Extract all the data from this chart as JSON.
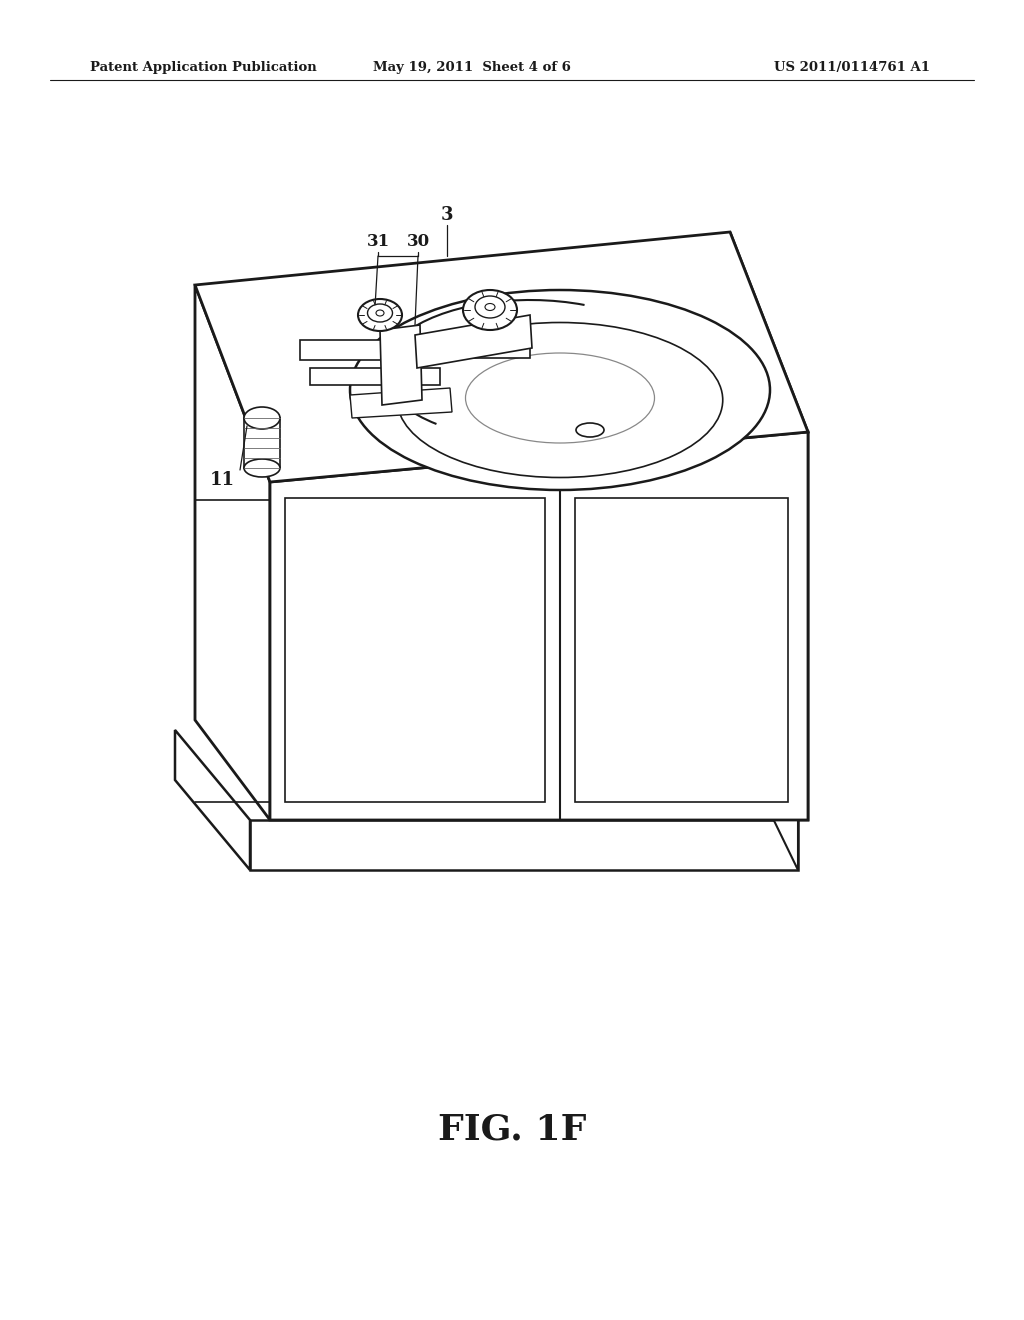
{
  "bg_color": "#ffffff",
  "line_color": "#1a1a1a",
  "header_left": "Patent Application Publication",
  "header_mid": "May 19, 2011  Sheet 4 of 6",
  "header_right": "US 2011/0114761 A1",
  "figure_label": "FIG. 1F",
  "label_3": [
    0.435,
    0.838
  ],
  "label_31": [
    0.368,
    0.813
  ],
  "label_30": [
    0.408,
    0.813
  ],
  "label_11": [
    0.218,
    0.657
  ]
}
